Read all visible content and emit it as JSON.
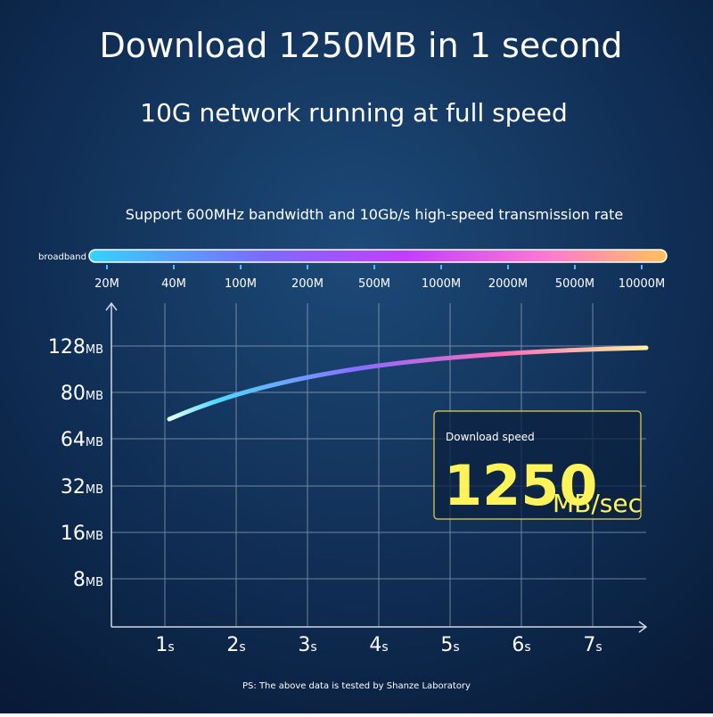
{
  "header": {
    "title": "Download 1250MB in 1 second",
    "subtitle": "10G network running at full speed"
  },
  "bandwidth": {
    "caption": "Support 600MHz bandwidth and 10Gb/s high-speed transmission rate",
    "label": "broadband",
    "ticks": [
      "20M",
      "40M",
      "100M",
      "200M",
      "500M",
      "1000M",
      "2000M",
      "5000M",
      "10000M"
    ]
  },
  "graph": {
    "y_labels": [
      {
        "number": "128",
        "unit": "MB"
      },
      {
        "number": "80",
        "unit": "MB"
      },
      {
        "number": "64",
        "unit": "MB"
      },
      {
        "number": "32",
        "unit": "MB"
      },
      {
        "number": "16",
        "unit": "MB"
      },
      {
        "number": "8",
        "unit": "MB"
      }
    ],
    "x_labels": [
      {
        "number": "1",
        "unit": "s"
      },
      {
        "number": "2",
        "unit": "s"
      },
      {
        "number": "3",
        "unit": "s"
      },
      {
        "number": "4",
        "unit": "s"
      },
      {
        "number": "5",
        "unit": "s"
      },
      {
        "number": "6",
        "unit": "s"
      },
      {
        "number": "7",
        "unit": "s"
      }
    ]
  },
  "callout": {
    "label": "Download speed",
    "value": "1250",
    "unit": "MB/sec"
  },
  "footnote": "PS: The above data is tested by Shanze Laboratory"
}
